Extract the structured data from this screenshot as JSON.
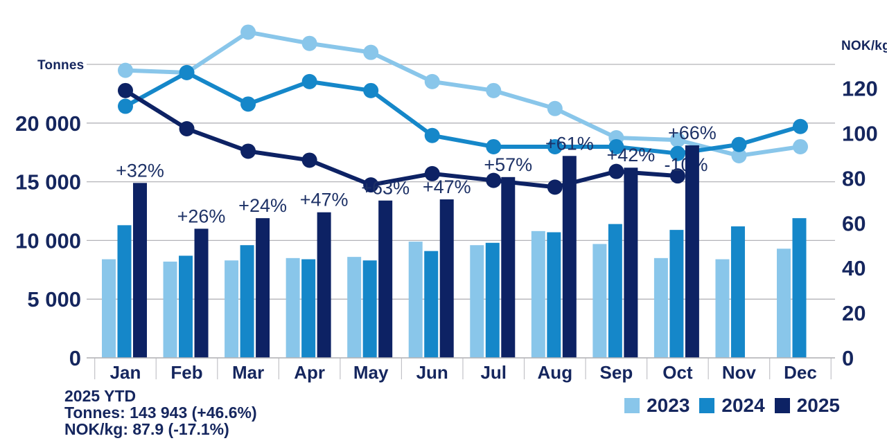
{
  "chart_data": {
    "type": "combo-bar-line",
    "title": "",
    "categories": [
      "Jan",
      "Feb",
      "Mar",
      "Apr",
      "May",
      "Jun",
      "Jul",
      "Aug",
      "Sep",
      "Oct",
      "Nov",
      "Dec"
    ],
    "left_axis": {
      "title": "Tonnes",
      "tick_labels": [
        "20 000",
        "15 000",
        "10 000",
        "5 000",
        "0"
      ],
      "tick_values": [
        20000,
        15000,
        10000,
        5000,
        0
      ],
      "grid_values": [
        25000,
        20000,
        15000,
        10000,
        5000,
        0
      ],
      "range": [
        0,
        25000
      ]
    },
    "right_axis": {
      "title": "NOK/kg",
      "tick_labels": [
        "120",
        "100",
        "80",
        "60",
        "40",
        "20",
        "0"
      ],
      "tick_values": [
        120,
        100,
        80,
        60,
        40,
        20,
        0
      ],
      "range": [
        0,
        130
      ]
    },
    "bar_series": [
      {
        "name": "2023",
        "unit": "tonnes",
        "color": "#89C6EA",
        "values": [
          8400,
          8200,
          8300,
          8500,
          8600,
          9900,
          9600,
          10800,
          9700,
          8500,
          8400,
          9300
        ]
      },
      {
        "name": "2024",
        "unit": "tonnes",
        "color": "#1587C9",
        "values": [
          11300,
          8700,
          9600,
          8400,
          8300,
          9100,
          9800,
          10700,
          11400,
          10900,
          11200,
          11900
        ]
      },
      {
        "name": "2025",
        "unit": "tonnes",
        "color": "#0D2264",
        "values": [
          14900,
          11000,
          11900,
          12400,
          13400,
          13500,
          15400,
          17200,
          16200,
          18100,
          null,
          null
        ]
      }
    ],
    "line_series": [
      {
        "name": "2023",
        "unit": "NOK/kg",
        "color": "#89C6EA",
        "values": [
          128,
          127,
          145,
          140,
          136,
          123,
          119,
          111,
          98,
          97,
          90,
          94
        ]
      },
      {
        "name": "2024",
        "unit": "NOK/kg",
        "color": "#1587C9",
        "values": [
          112,
          127,
          113,
          123,
          119,
          99,
          94,
          94,
          94,
          91,
          95,
          103
        ]
      },
      {
        "name": "2025",
        "unit": "NOK/kg",
        "color": "#0D2264",
        "values": [
          119,
          102,
          92,
          88,
          77,
          82,
          79,
          76,
          83,
          81,
          null,
          null
        ]
      }
    ],
    "bar_growth_labels": [
      "+32%",
      "+26%",
      "+24%",
      "+47%",
      "+63%",
      "+47%",
      "+57%",
      "+61%",
      "+42%",
      "+66%",
      null,
      null
    ],
    "price_change_label": {
      "month": "Oct",
      "text": "-10%"
    },
    "legend": [
      {
        "label": "2023",
        "color": "#89C6EA"
      },
      {
        "label": "2024",
        "color": "#1587C9"
      },
      {
        "label": "2025",
        "color": "#0D2264"
      }
    ],
    "footer": {
      "title": "2025 YTD",
      "tonnes": "Tonnes: 143 943 (+46.6%)",
      "nok": "NOK/kg: 87.9 (-17.1%)"
    }
  },
  "colors": {
    "text": "#15265E",
    "pct_text": "#1D3166",
    "grid": "#B3B3B8",
    "year2023": "#89C6EA",
    "year2024": "#1587C9",
    "year2025": "#0D2264"
  }
}
